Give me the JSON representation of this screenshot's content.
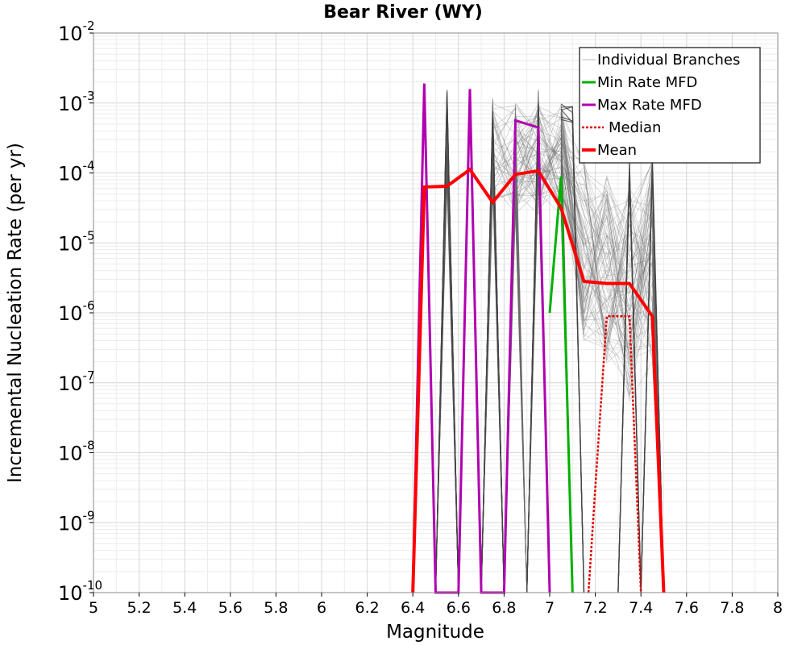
{
  "chart_data": {
    "type": "line",
    "title": "Bear River (WY)",
    "xlabel": "Magnitude",
    "ylabel": "Incremental Nucleation Rate (per yr)",
    "xlim": [
      5,
      8
    ],
    "ylim_log10": [
      -10,
      -2
    ],
    "y_scale": "log",
    "x_ticks": [
      "5",
      "5.2",
      "5.4",
      "5.6",
      "5.8",
      "6",
      "6.2",
      "6.4",
      "6.6",
      "6.8",
      "7",
      "7.2",
      "7.4",
      "7.6",
      "7.8",
      "8"
    ],
    "y_ticks": [
      {
        "base": "10",
        "exp": "-2",
        "log": -2
      },
      {
        "base": "10",
        "exp": "-3",
        "log": -3
      },
      {
        "base": "10",
        "exp": "-4",
        "log": -4
      },
      {
        "base": "10",
        "exp": "-5",
        "log": -5
      },
      {
        "base": "10",
        "exp": "-6",
        "log": -6
      },
      {
        "base": "10",
        "exp": "-7",
        "log": -7
      },
      {
        "base": "10",
        "exp": "-8",
        "log": -8
      },
      {
        "base": "10",
        "exp": "-9",
        "log": -9
      },
      {
        "base": "10",
        "exp": "-10",
        "log": -10
      }
    ],
    "grid": true,
    "legend_position": "top-right",
    "legend": [
      {
        "label": "Individual Branches",
        "color": "#a0a0a0",
        "style": "thin"
      },
      {
        "label": "Min Rate MFD",
        "color": "#00b000",
        "style": "solid"
      },
      {
        "label": "Max Rate MFD",
        "color": "#b000b0",
        "style": "solid"
      },
      {
        "label": "Median",
        "color": "#e00000",
        "style": "dotted"
      },
      {
        "label": "Mean",
        "color": "#ff0000",
        "style": "thick"
      }
    ],
    "series": [
      {
        "name": "Mean",
        "color": "#ff0000",
        "x": [
          6.4,
          6.45,
          6.55,
          6.65,
          6.75,
          6.85,
          6.95,
          7.05,
          7.15,
          7.25,
          7.35,
          7.45,
          7.5
        ],
        "log_y": [
          -10,
          -4.2,
          -4.19,
          -3.95,
          -4.42,
          -4.02,
          -3.97,
          -4.5,
          -5.55,
          -5.58,
          -5.58,
          -6.05,
          -10
        ]
      },
      {
        "name": "Median",
        "color": "#e00000",
        "x": [
          7.17,
          7.2,
          7.25,
          7.35,
          7.4
        ],
        "log_y": [
          -10,
          -8.5,
          -6.05,
          -6.05,
          -10
        ]
      },
      {
        "name": "Min Rate MFD",
        "color": "#00b000",
        "x": [
          7.0,
          7.05,
          7.1
        ],
        "log_y": [
          -6.0,
          -4.05,
          -10
        ]
      },
      {
        "name": "Max Rate MFD",
        "color": "#b000b0",
        "x": [
          6.4,
          6.45,
          6.5,
          6.6,
          6.65,
          6.7,
          6.8,
          6.85,
          6.95,
          7.0
        ],
        "log_y": [
          -10,
          -2.72,
          -10,
          -10,
          -2.8,
          -10,
          -10,
          -3.25,
          -3.35,
          -10
        ]
      },
      {
        "name": "Individual Branches",
        "color": "#555555",
        "spikes": [
          {
            "x": [
              6.5,
              6.55,
              6.6
            ],
            "log_y": [
              -10,
              -2.8,
              -10
            ]
          },
          {
            "x": [
              6.7,
              6.75,
              6.8
            ],
            "log_y": [
              -10,
              -3.05,
              -10
            ]
          },
          {
            "x": [
              6.9,
              6.95,
              7.0
            ],
            "log_y": [
              -10,
              -2.95,
              -10
            ]
          },
          {
            "x": [
              7.05,
              7.1,
              7.15
            ],
            "log_y": [
              -3.0,
              -3.0,
              -10
            ]
          },
          {
            "x": [
              7.3,
              7.35,
              7.4
            ],
            "log_y": [
              -10,
              -3.8,
              -10
            ]
          },
          {
            "x": [
              7.4,
              7.45,
              7.5
            ],
            "log_y": [
              -10,
              -3.75,
              -10
            ]
          }
        ]
      }
    ]
  }
}
